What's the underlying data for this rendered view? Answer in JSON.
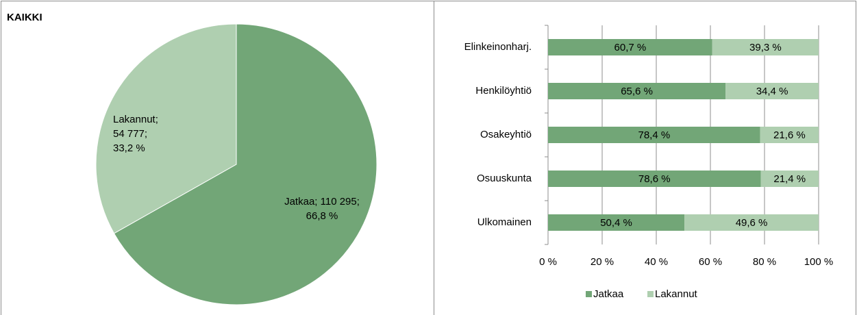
{
  "chart_data": [
    {
      "type": "pie",
      "title": "KAIKKI",
      "categories": [
        "Jatkaa",
        "Lakannut"
      ],
      "values": [
        110295,
        54777
      ],
      "value_labels": [
        "Jatkaa; 110 295; 66,8 %",
        "Lakannut; 54 777; 33,2 %"
      ],
      "colors": [
        "#72a677",
        "#afcfb0"
      ]
    },
    {
      "type": "stacked_bar_horizontal",
      "categories": [
        "Elinkeinonharj.",
        "Henkilöyhtiö",
        "Osakeyhtiö",
        "Osuuskunta",
        "Ulkomainen"
      ],
      "series": [
        {
          "name": "Jatkaa",
          "color": "#72a677",
          "values": [
            60.7,
            65.6,
            78.4,
            78.6,
            50.4
          ],
          "value_labels": [
            "60,7 %",
            "65,6 %",
            "78,4 %",
            "78,6 %",
            "50,4 %"
          ]
        },
        {
          "name": "Lakannut",
          "color": "#afcfb0",
          "values": [
            39.3,
            34.4,
            21.6,
            21.4,
            49.6
          ],
          "value_labels": [
            "39,3 %",
            "34,4 %",
            "21,6 %",
            "21,4 %",
            "49,6 %"
          ]
        }
      ],
      "xlim": [
        0,
        100
      ],
      "xticks": [
        {
          "value": 0,
          "label": "0 %"
        },
        {
          "value": 20,
          "label": "20 %"
        },
        {
          "value": 40,
          "label": "40 %"
        },
        {
          "value": 60,
          "label": "60 %"
        },
        {
          "value": 80,
          "label": "80 %"
        },
        {
          "value": 100,
          "label": "100 %"
        }
      ],
      "grid": true,
      "legend": "bottom"
    }
  ]
}
